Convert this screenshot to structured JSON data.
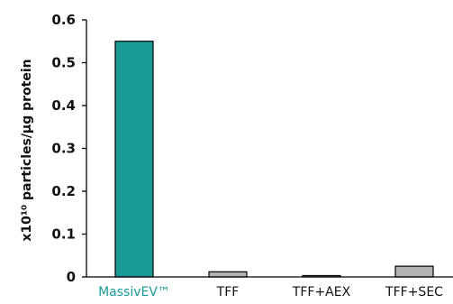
{
  "chart_data": {
    "type": "bar",
    "title": "",
    "xlabel": "",
    "ylabel": "x10¹⁰ particles/µg protein",
    "ylim": [
      0,
      0.6
    ],
    "yticks": [
      0,
      0.1,
      0.2,
      0.3,
      0.4,
      0.5,
      0.6
    ],
    "ytick_labels": [
      "0",
      "0.1",
      "0.2",
      "0.3",
      "0.4",
      "0.5",
      "0.6"
    ],
    "categories": [
      "MassivEV™",
      "TFF",
      "TFF+AEX",
      "TFF+SEC"
    ],
    "values": [
      0.55,
      0.012,
      0.003,
      0.025
    ],
    "bar_colors": [
      "#1a9a96",
      "#b3b3b3",
      "#b3b3b3",
      "#b3b3b3"
    ],
    "label_colors": [
      "#1a9a96",
      "#111111",
      "#111111",
      "#111111"
    ],
    "grid": false
  }
}
